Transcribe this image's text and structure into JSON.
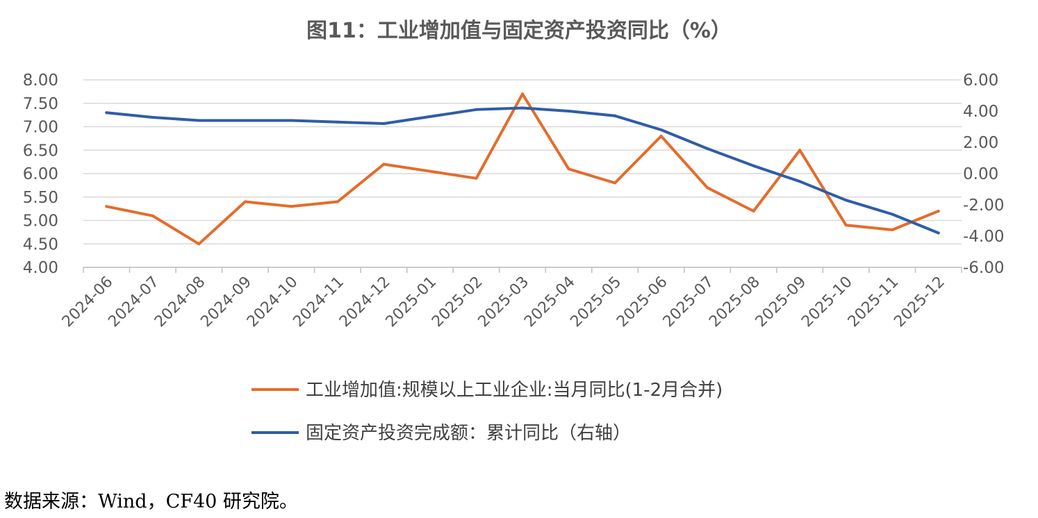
{
  "colors": {
    "orange": "#E46C2B",
    "blue": "#2F5DA8",
    "grid": "#D9D9D9",
    "text": "#595959"
  },
  "source_note": "数据来源：Wind，CF40 研究院。",
  "chart_data": {
    "type": "line",
    "title": "图11：工业增加值与固定资产投资同比（%）",
    "categories": [
      "2024-06",
      "2024-07",
      "2024-08",
      "2024-09",
      "2024-10",
      "2024-11",
      "2024-12",
      "2025-01",
      "2025-02",
      "2025-03",
      "2025-04",
      "2025-05",
      "2025-06",
      "2025-07",
      "2025-08",
      "2025-09",
      "2025-10",
      "2025-11",
      "2025-12"
    ],
    "left_axis": {
      "min": 4.0,
      "max": 8.0,
      "ticks": [
        "8.00",
        "7.50",
        "7.00",
        "6.50",
        "6.00",
        "5.50",
        "5.00",
        "4.50",
        "4.00"
      ],
      "tick_values": [
        8.0,
        7.5,
        7.0,
        6.5,
        6.0,
        5.5,
        5.0,
        4.5,
        4.0
      ]
    },
    "right_axis": {
      "min": -6.0,
      "max": 6.0,
      "ticks": [
        "6.00",
        "4.00",
        "2.00",
        "0.00",
        "-2.00",
        "-4.00",
        "-6.00"
      ],
      "tick_values": [
        6.0,
        4.0,
        2.0,
        0.0,
        -2.0,
        -4.0,
        -6.0
      ]
    },
    "grid": true,
    "legend_position": "bottom",
    "series": [
      {
        "name": "工业增加值:规模以上工业企业:当月同比(1-2月合并)",
        "axis": "left",
        "color": "#E46C2B",
        "values": [
          5.3,
          5.1,
          4.5,
          5.4,
          5.3,
          5.4,
          6.2,
          null,
          5.9,
          7.7,
          6.1,
          5.8,
          6.8,
          5.7,
          5.2,
          6.5,
          4.9,
          4.8,
          5.2
        ]
      },
      {
        "name": "固定资产投资完成额：累计同比（右轴）",
        "axis": "right",
        "color": "#2F5DA8",
        "values": [
          3.9,
          3.6,
          3.4,
          3.4,
          3.4,
          3.3,
          3.2,
          null,
          4.1,
          4.2,
          4.0,
          3.7,
          2.8,
          1.6,
          0.5,
          -0.5,
          -1.7,
          -2.6,
          -3.8
        ]
      }
    ]
  }
}
